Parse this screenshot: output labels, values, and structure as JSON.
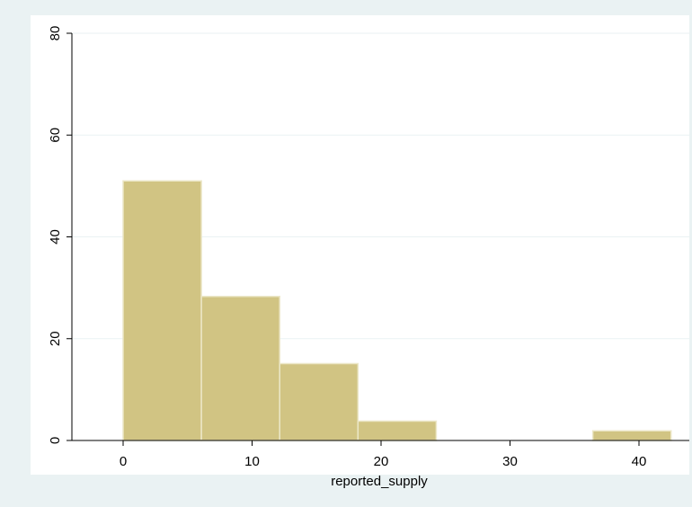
{
  "chart_data": {
    "type": "bar",
    "subtype": "histogram",
    "title": "",
    "xlabel": "reported_supply",
    "ylabel": "",
    "xlim": [
      -4,
      43
    ],
    "ylim": [
      0,
      80
    ],
    "xticks": [
      0,
      10,
      20,
      30,
      40
    ],
    "yticks": [
      0,
      20,
      40,
      60,
      80
    ],
    "bins": [
      {
        "x0": 0,
        "x1": 6.07,
        "value": 51
      },
      {
        "x0": 6.07,
        "x1": 12.14,
        "value": 28.3
      },
      {
        "x0": 12.14,
        "x1": 18.21,
        "value": 15.1
      },
      {
        "x0": 18.21,
        "x1": 24.28,
        "value": 3.8
      },
      {
        "x0": 36.42,
        "x1": 42.49,
        "value": 1.9
      }
    ],
    "grid": true,
    "colors": {
      "background": "#eaf2f3",
      "plot_background": "#ffffff",
      "bar_fill": "#d1c483",
      "bar_edge": "#ece7c8",
      "grid": "#eaf2f3"
    }
  }
}
